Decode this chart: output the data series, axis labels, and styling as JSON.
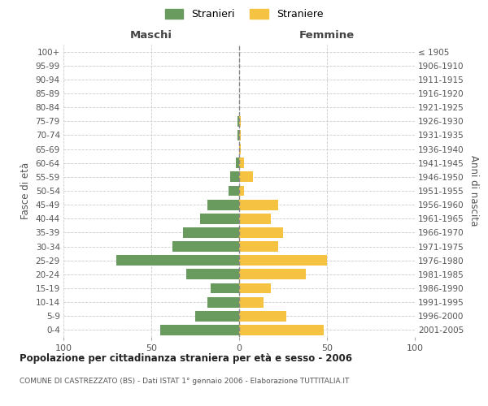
{
  "age_groups": [
    "0-4",
    "5-9",
    "10-14",
    "15-19",
    "20-24",
    "25-29",
    "30-34",
    "35-39",
    "40-44",
    "45-49",
    "50-54",
    "55-59",
    "60-64",
    "65-69",
    "70-74",
    "75-79",
    "80-84",
    "85-89",
    "90-94",
    "95-99",
    "100+"
  ],
  "birth_years": [
    "2001-2005",
    "1996-2000",
    "1991-1995",
    "1986-1990",
    "1981-1985",
    "1976-1980",
    "1971-1975",
    "1966-1970",
    "1961-1965",
    "1956-1960",
    "1951-1955",
    "1946-1950",
    "1941-1945",
    "1936-1940",
    "1931-1935",
    "1926-1930",
    "1921-1925",
    "1916-1920",
    "1911-1915",
    "1906-1910",
    "≤ 1905"
  ],
  "maschi": [
    45,
    25,
    18,
    16,
    30,
    70,
    38,
    32,
    22,
    18,
    6,
    5,
    2,
    0,
    1,
    1,
    0,
    0,
    0,
    0,
    0
  ],
  "femmine": [
    48,
    27,
    14,
    18,
    38,
    50,
    22,
    25,
    18,
    22,
    3,
    8,
    3,
    1,
    1,
    1,
    0,
    0,
    0,
    0,
    0
  ],
  "maschi_color": "#6a9b5e",
  "femmine_color": "#f5c242",
  "title": "Popolazione per cittadinanza straniera per età e sesso - 2006",
  "subtitle": "COMUNE DI CASTREZZATO (BS) - Dati ISTAT 1° gennaio 2006 - Elaborazione TUTTITALIA.IT",
  "xlabel_left": "Maschi",
  "xlabel_right": "Femmine",
  "ylabel_left": "Fasce di età",
  "ylabel_right": "Anni di nascita",
  "legend_maschi": "Stranieri",
  "legend_femmine": "Straniere",
  "xlim": 100,
  "background_color": "#ffffff",
  "grid_color": "#cccccc",
  "bar_height": 0.75
}
